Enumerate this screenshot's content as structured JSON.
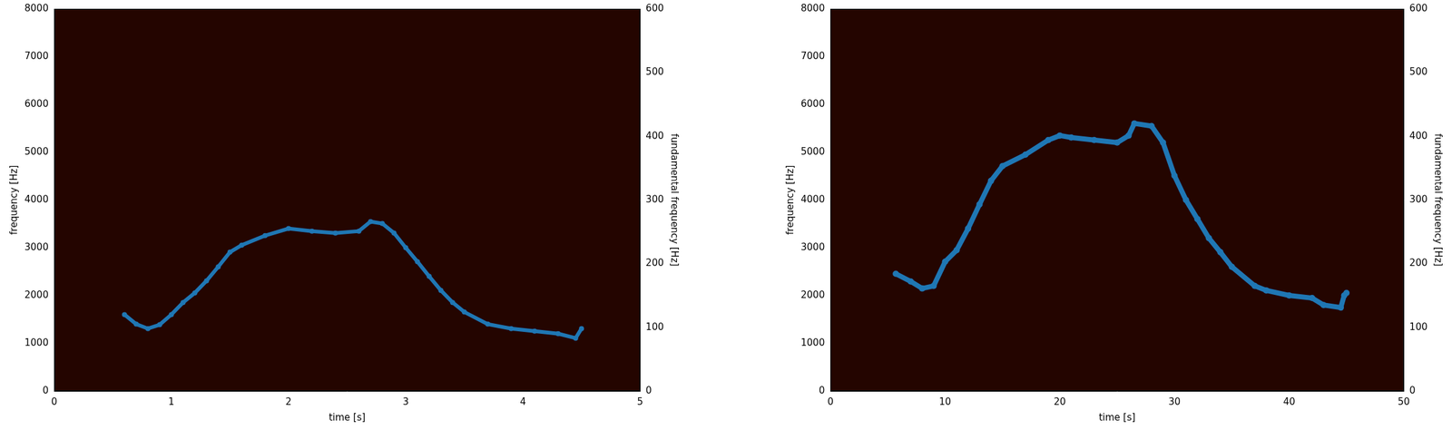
{
  "chart_data": [
    {
      "type": "scatter",
      "xlabel": "time [s]",
      "ylabel": "frequency [Hz]",
      "y2label": "fundamental frequency [Hz]",
      "xlim": [
        0,
        5
      ],
      "xticks": [
        0,
        1,
        2,
        3,
        4,
        5
      ],
      "ylim": [
        0,
        8000
      ],
      "yticks": [
        0,
        1000,
        2000,
        3000,
        4000,
        5000,
        6000,
        7000,
        8000
      ],
      "y2lim": [
        0,
        600
      ],
      "y2ticks": [
        0,
        100,
        200,
        300,
        400,
        500,
        600
      ],
      "grid": false,
      "series": [
        {
          "color": "#1f77b4",
          "marker": "circle",
          "axis": "y2",
          "x": [
            0.6,
            0.7,
            0.8,
            0.9,
            1.0,
            1.1,
            1.2,
            1.3,
            1.4,
            1.5,
            1.6,
            1.8,
            2.0,
            2.2,
            2.4,
            2.6,
            2.7,
            2.8,
            2.9,
            3.0,
            3.1,
            3.2,
            3.3,
            3.4,
            3.5,
            3.7,
            3.9,
            4.1,
            4.3,
            4.45,
            4.5
          ],
          "values": [
            120,
            105,
            98,
            104,
            120,
            139,
            154,
            173,
            195,
            218,
            229,
            244,
            255,
            251,
            248,
            251,
            266,
            263,
            248,
            225,
            203,
            180,
            158,
            139,
            124,
            105,
            98,
            94,
            90,
            83,
            98
          ]
        }
      ]
    },
    {
      "type": "scatter",
      "xlabel": "time [s]",
      "ylabel": "frequency [Hz]",
      "y2label": "fundamental frequency [Hz]",
      "xlim": [
        0,
        50
      ],
      "xticks": [
        0,
        10,
        20,
        30,
        40,
        50
      ],
      "ylim": [
        0,
        8000
      ],
      "yticks": [
        0,
        1000,
        2000,
        3000,
        4000,
        5000,
        6000,
        7000,
        8000
      ],
      "y2lim": [
        0,
        600
      ],
      "y2ticks": [
        0,
        100,
        200,
        300,
        400,
        500,
        600
      ],
      "grid": false,
      "series": [
        {
          "color": "#1f77b4",
          "marker": "circle",
          "axis": "y2",
          "x": [
            5.7,
            7,
            8,
            9,
            10,
            11,
            12,
            13,
            14,
            15,
            17,
            19,
            20,
            21,
            23,
            25,
            26,
            26.5,
            28,
            29,
            30,
            31,
            32,
            33,
            34,
            35,
            37,
            38,
            40,
            42,
            43,
            44.5,
            44.8,
            45
          ],
          "values": [
            184,
            172,
            161,
            165,
            203,
            221,
            255,
            293,
            330,
            353,
            371,
            394,
            401,
            398,
            394,
            390,
            401,
            420,
            416,
            390,
            338,
            300,
            270,
            240,
            218,
            195,
            165,
            158,
            150,
            146,
            135,
            131,
            150,
            154
          ]
        }
      ]
    }
  ]
}
